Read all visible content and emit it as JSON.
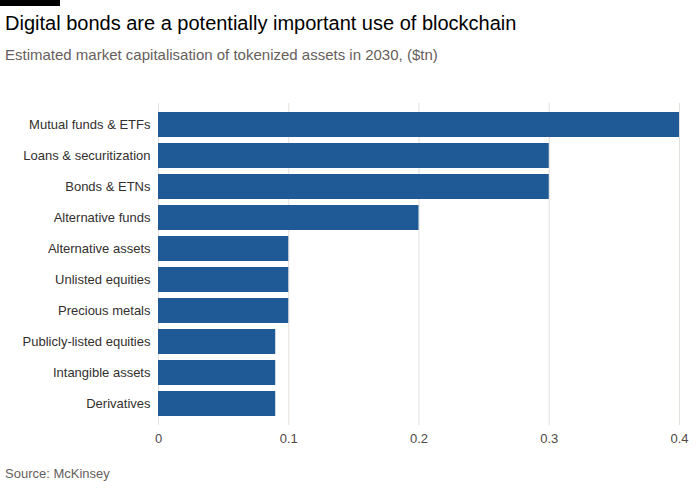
{
  "chart_data": {
    "type": "bar",
    "orientation": "horizontal",
    "title": "Digital bonds are a potentially important use of blockchain",
    "subtitle": "Estimated market capitalisation of tokenized assets in 2030, ($tn)",
    "source": "Source: McKinsey",
    "categories": [
      "Mutual funds & ETFs",
      "Loans & securitization",
      "Bonds & ETNs",
      "Alternative funds",
      "Alternative assets",
      "Unlisted equities",
      "Precious metals",
      "Publicly-listed equities",
      "Intangible assets",
      "Derivatives"
    ],
    "values": [
      0.4,
      0.3,
      0.3,
      0.2,
      0.1,
      0.1,
      0.1,
      0.09,
      0.09,
      0.09
    ],
    "color": "#1f5a96",
    "xlim": [
      0,
      0.4
    ],
    "xticks": [
      0,
      0.1,
      0.2,
      0.3,
      0.4
    ],
    "grid": true
  }
}
